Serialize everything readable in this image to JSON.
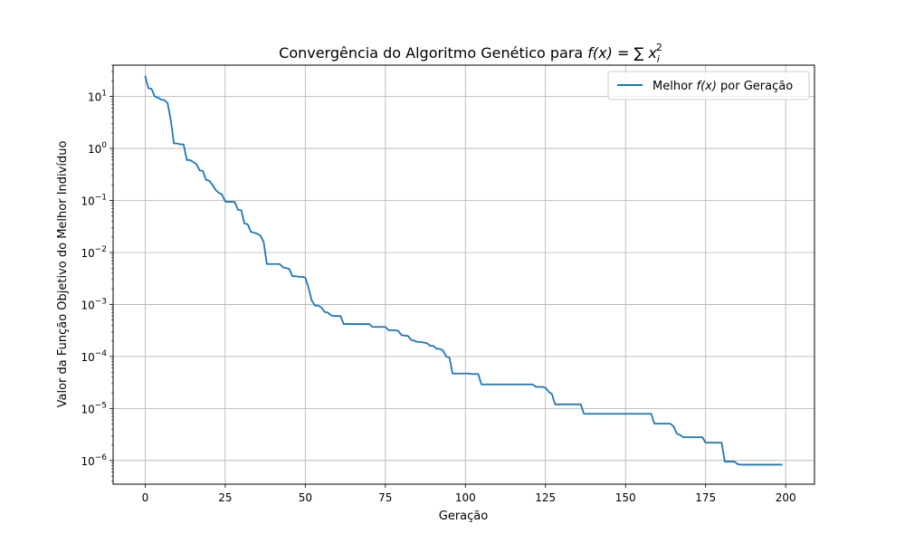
{
  "chart_data": {
    "type": "line",
    "title": {
      "prefix": "Convergência do Algoritmo Genético para ",
      "math": "f(x) = ∑ x",
      "subscript": "i",
      "superscript": "2"
    },
    "xlabel": "Geração",
    "ylabel": "Valor da Função Objetivo do Melhor Indivíduo",
    "xlim": [
      -10,
      209
    ],
    "ylim": [
      3.5e-07,
      40
    ],
    "y_scale": "log",
    "grid": true,
    "legend_position": "top-right",
    "x_ticks": [
      {
        "value": 0,
        "label": "0"
      },
      {
        "value": 25,
        "label": "25"
      },
      {
        "value": 50,
        "label": "50"
      },
      {
        "value": 75,
        "label": "75"
      },
      {
        "value": 100,
        "label": "100"
      },
      {
        "value": 125,
        "label": "125"
      },
      {
        "value": 150,
        "label": "150"
      },
      {
        "value": 175,
        "label": "175"
      },
      {
        "value": 200,
        "label": "200"
      }
    ],
    "y_ticks": [
      {
        "value": 10,
        "base": "10",
        "exp": "1"
      },
      {
        "value": 1,
        "base": "10",
        "exp": "0"
      },
      {
        "value": 0.1,
        "base": "10",
        "exp": "−1"
      },
      {
        "value": 0.01,
        "base": "10",
        "exp": "−2"
      },
      {
        "value": 0.001,
        "base": "10",
        "exp": "−3"
      },
      {
        "value": 0.0001,
        "base": "10",
        "exp": "−4"
      },
      {
        "value": 1e-05,
        "base": "10",
        "exp": "−5"
      },
      {
        "value": 1e-06,
        "base": "10",
        "exp": "−6"
      }
    ],
    "series": [
      {
        "name": "Melhor f(x) por Geração",
        "legend_prefix": "Melhor ",
        "legend_math": "f(x)",
        "legend_suffix": " por Geração",
        "color": "#1f77b4",
        "points": [
          [
            0,
            25
          ],
          [
            1,
            14.5
          ],
          [
            2,
            14
          ],
          [
            3,
            10
          ],
          [
            4,
            9.5
          ],
          [
            5,
            8.7
          ],
          [
            6,
            8.5
          ],
          [
            7,
            7.5
          ],
          [
            8,
            3.5
          ],
          [
            9,
            1.25
          ],
          [
            10,
            1.25
          ],
          [
            11,
            1.2
          ],
          [
            12,
            1.2
          ],
          [
            13,
            0.6
          ],
          [
            14,
            0.6
          ],
          [
            15,
            0.55
          ],
          [
            16,
            0.5
          ],
          [
            17,
            0.38
          ],
          [
            18,
            0.37
          ],
          [
            19,
            0.25
          ],
          [
            20,
            0.24
          ],
          [
            21,
            0.2
          ],
          [
            22,
            0.16
          ],
          [
            23,
            0.14
          ],
          [
            24,
            0.13
          ],
          [
            25,
            0.095
          ],
          [
            26,
            0.094
          ],
          [
            27,
            0.094
          ],
          [
            28,
            0.093
          ],
          [
            29,
            0.066
          ],
          [
            30,
            0.065
          ],
          [
            31,
            0.036
          ],
          [
            32,
            0.035
          ],
          [
            33,
            0.025
          ],
          [
            34,
            0.024
          ],
          [
            35,
            0.023
          ],
          [
            36,
            0.021
          ],
          [
            37,
            0.016
          ],
          [
            38,
            0.006
          ],
          [
            39,
            0.006
          ],
          [
            40,
            0.006
          ],
          [
            41,
            0.006
          ],
          [
            42,
            0.006
          ],
          [
            43,
            0.0052
          ],
          [
            44,
            0.005
          ],
          [
            45,
            0.0048
          ],
          [
            46,
            0.0035
          ],
          [
            47,
            0.0035
          ],
          [
            48,
            0.0034
          ],
          [
            49,
            0.0034
          ],
          [
            50,
            0.0033
          ],
          [
            51,
            0.0021
          ],
          [
            52,
            0.0012
          ],
          [
            53,
            0.00095
          ],
          [
            54,
            0.00095
          ],
          [
            55,
            0.00088
          ],
          [
            56,
            0.00072
          ],
          [
            57,
            0.0007
          ],
          [
            58,
            0.00062
          ],
          [
            59,
            0.0006
          ],
          [
            60,
            0.0006
          ],
          [
            61,
            0.0006
          ],
          [
            62,
            0.00042
          ],
          [
            63,
            0.00042
          ],
          [
            64,
            0.00042
          ],
          [
            65,
            0.00042
          ],
          [
            66,
            0.00042
          ],
          [
            67,
            0.00042
          ],
          [
            68,
            0.00042
          ],
          [
            69,
            0.00042
          ],
          [
            70,
            0.00042
          ],
          [
            71,
            0.00037
          ],
          [
            72,
            0.00037
          ],
          [
            73,
            0.00037
          ],
          [
            74,
            0.00037
          ],
          [
            75,
            0.00037
          ],
          [
            76,
            0.00032
          ],
          [
            77,
            0.00032
          ],
          [
            78,
            0.00032
          ],
          [
            79,
            0.00031
          ],
          [
            80,
            0.00026
          ],
          [
            81,
            0.00025
          ],
          [
            82,
            0.00025
          ],
          [
            83,
            0.00021
          ],
          [
            84,
            0.0002
          ],
          [
            85,
            0.00019
          ],
          [
            86,
            0.00019
          ],
          [
            87,
            0.000185
          ],
          [
            88,
            0.00018
          ],
          [
            89,
            0.00016
          ],
          [
            90,
            0.00016
          ],
          [
            91,
            0.00014
          ],
          [
            92,
            0.00014
          ],
          [
            93,
            0.00013
          ],
          [
            94,
            0.0001
          ],
          [
            95,
            9.5e-05
          ],
          [
            96,
            4.7e-05
          ],
          [
            97,
            4.7e-05
          ],
          [
            98,
            4.7e-05
          ],
          [
            99,
            4.7e-05
          ],
          [
            100,
            4.7e-05
          ],
          [
            101,
            4.7e-05
          ],
          [
            102,
            4.6e-05
          ],
          [
            103,
            4.6e-05
          ],
          [
            104,
            4.6e-05
          ],
          [
            105,
            2.9e-05
          ],
          [
            106,
            2.9e-05
          ],
          [
            107,
            2.9e-05
          ],
          [
            110,
            2.9e-05
          ],
          [
            115,
            2.9e-05
          ],
          [
            120,
            2.9e-05
          ],
          [
            121,
            2.9e-05
          ],
          [
            122,
            2.6e-05
          ],
          [
            123,
            2.6e-05
          ],
          [
            124,
            2.6e-05
          ],
          [
            125,
            2.5e-05
          ],
          [
            126,
            2.1e-05
          ],
          [
            127,
            1.9e-05
          ],
          [
            128,
            1.2e-05
          ],
          [
            129,
            1.2e-05
          ],
          [
            130,
            1.2e-05
          ],
          [
            131,
            1.2e-05
          ],
          [
            132,
            1.2e-05
          ],
          [
            133,
            1.2e-05
          ],
          [
            134,
            1.2e-05
          ],
          [
            135,
            1.2e-05
          ],
          [
            136,
            1.2e-05
          ],
          [
            137,
            7.9e-06
          ],
          [
            138,
            7.9e-06
          ],
          [
            140,
            7.9e-06
          ],
          [
            145,
            7.9e-06
          ],
          [
            150,
            7.9e-06
          ],
          [
            155,
            7.9e-06
          ],
          [
            157,
            7.9e-06
          ],
          [
            158,
            7.9e-06
          ],
          [
            159,
            5.1e-06
          ],
          [
            160,
            5.1e-06
          ],
          [
            161,
            5.1e-06
          ],
          [
            162,
            5.1e-06
          ],
          [
            163,
            5.1e-06
          ],
          [
            164,
            5.1e-06
          ],
          [
            165,
            4.5e-06
          ],
          [
            166,
            3.3e-06
          ],
          [
            167,
            3.1e-06
          ],
          [
            168,
            2.8e-06
          ],
          [
            169,
            2.8e-06
          ],
          [
            170,
            2.8e-06
          ],
          [
            171,
            2.8e-06
          ],
          [
            172,
            2.8e-06
          ],
          [
            173,
            2.8e-06
          ],
          [
            174,
            2.8e-06
          ],
          [
            175,
            2.2e-06
          ],
          [
            176,
            2.2e-06
          ],
          [
            177,
            2.2e-06
          ],
          [
            178,
            2.2e-06
          ],
          [
            179,
            2.2e-06
          ],
          [
            180,
            2.2e-06
          ],
          [
            181,
            9.5e-07
          ],
          [
            182,
            9.5e-07
          ],
          [
            183,
            9.5e-07
          ],
          [
            184,
            9.5e-07
          ],
          [
            185,
            8.5e-07
          ],
          [
            186,
            8.3e-07
          ],
          [
            190,
            8.3e-07
          ],
          [
            195,
            8.3e-07
          ],
          [
            199,
            8.3e-07
          ]
        ]
      }
    ]
  }
}
